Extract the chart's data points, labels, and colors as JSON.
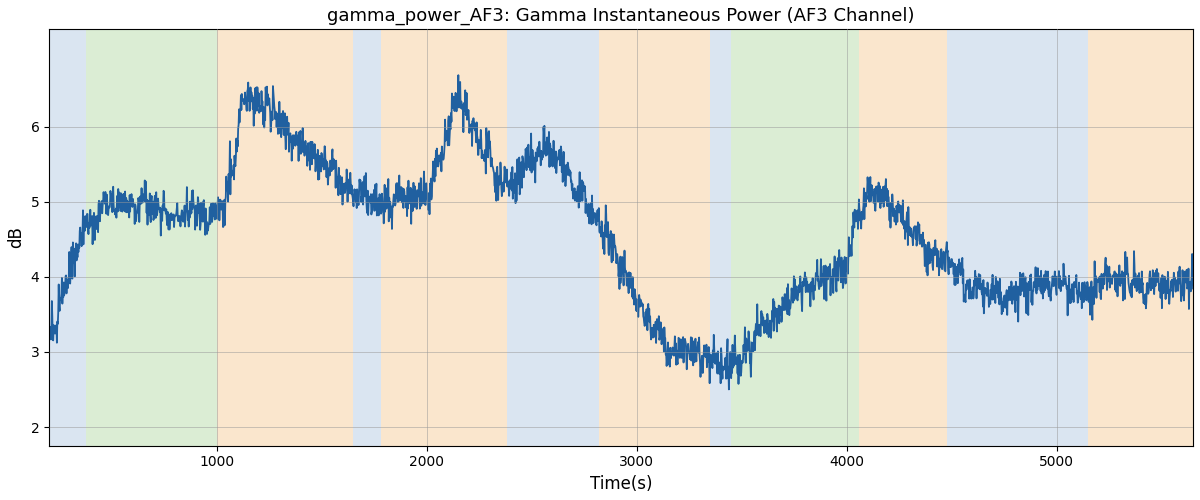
{
  "title": "gamma_power_AF3: Gamma Instantaneous Power (AF3 Channel)",
  "xlabel": "Time(s)",
  "ylabel": "dB",
  "xlim": [
    200,
    5650
  ],
  "ylim": [
    1.75,
    7.3
  ],
  "yticks": [
    2,
    3,
    4,
    5,
    6
  ],
  "xticks": [
    1000,
    2000,
    3000,
    4000,
    5000
  ],
  "line_color": "#2060a0",
  "line_width": 1.3,
  "grid_color": "#999999",
  "bg_bands": [
    {
      "xmin": 200,
      "xmax": 375,
      "color": "#aec6e0",
      "alpha": 0.45
    },
    {
      "xmin": 375,
      "xmax": 1000,
      "color": "#b0d8a0",
      "alpha": 0.45
    },
    {
      "xmin": 1000,
      "xmax": 1650,
      "color": "#f5c890",
      "alpha": 0.45
    },
    {
      "xmin": 1650,
      "xmax": 1780,
      "color": "#aec6e0",
      "alpha": 0.45
    },
    {
      "xmin": 1780,
      "xmax": 2380,
      "color": "#f5c890",
      "alpha": 0.45
    },
    {
      "xmin": 2380,
      "xmax": 2820,
      "color": "#aec6e0",
      "alpha": 0.45
    },
    {
      "xmin": 2820,
      "xmax": 3350,
      "color": "#f5c890",
      "alpha": 0.45
    },
    {
      "xmin": 3350,
      "xmax": 3450,
      "color": "#aec6e0",
      "alpha": 0.45
    },
    {
      "xmin": 3450,
      "xmax": 3560,
      "color": "#b0d8a0",
      "alpha": 0.45
    },
    {
      "xmin": 3560,
      "xmax": 4060,
      "color": "#b0d8a0",
      "alpha": 0.45
    },
    {
      "xmin": 4060,
      "xmax": 4480,
      "color": "#f5c890",
      "alpha": 0.45
    },
    {
      "xmin": 4480,
      "xmax": 4680,
      "color": "#aec6e0",
      "alpha": 0.45
    },
    {
      "xmin": 4680,
      "xmax": 4850,
      "color": "#aec6e0",
      "alpha": 0.45
    },
    {
      "xmin": 4850,
      "xmax": 5150,
      "color": "#aec6e0",
      "alpha": 0.45
    },
    {
      "xmin": 5150,
      "xmax": 5650,
      "color": "#f5c890",
      "alpha": 0.45
    }
  ],
  "envelope_t": [
    200,
    280,
    380,
    500,
    650,
    800,
    950,
    1000,
    1020,
    1080,
    1120,
    1160,
    1220,
    1320,
    1450,
    1600,
    1750,
    1850,
    1950,
    2000,
    2050,
    2150,
    2250,
    2400,
    2500,
    2560,
    2620,
    2680,
    2750,
    2820,
    2920,
    3020,
    3150,
    3300,
    3420,
    3500,
    3600,
    3700,
    3800,
    3900,
    4000,
    4050,
    4100,
    4150,
    4200,
    4350,
    4450,
    4550,
    4650,
    4700,
    4750,
    4800,
    4900,
    5000,
    5100,
    5200,
    5350,
    5500,
    5650
  ],
  "envelope_v": [
    3.1,
    4.0,
    4.7,
    5.0,
    4.9,
    4.85,
    4.8,
    4.85,
    4.9,
    5.5,
    6.2,
    6.5,
    6.3,
    6.1,
    5.6,
    5.3,
    5.0,
    5.0,
    5.05,
    5.0,
    5.5,
    6.3,
    5.8,
    5.1,
    5.6,
    5.7,
    5.5,
    5.3,
    5.0,
    4.7,
    4.2,
    3.6,
    3.1,
    2.9,
    2.75,
    2.9,
    3.4,
    3.6,
    3.8,
    4.0,
    4.1,
    4.8,
    5.2,
    5.2,
    5.0,
    4.5,
    4.2,
    4.0,
    3.8,
    3.8,
    3.7,
    3.8,
    3.9,
    3.9,
    3.8,
    3.9,
    4.0,
    3.85,
    3.9
  ],
  "noise_scale": 0.22,
  "fast_noise_scale": 0.12,
  "signal_seed": 42,
  "figsize": [
    12.0,
    5.0
  ],
  "dpi": 100
}
